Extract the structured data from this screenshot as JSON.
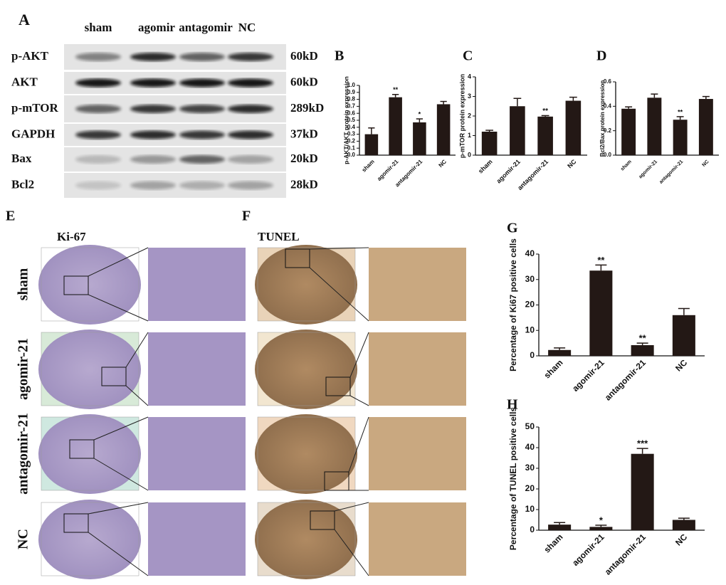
{
  "panel_a": {
    "letter": "A",
    "lanes": [
      "sham",
      "agomir",
      "antagomir",
      "NC"
    ],
    "rows": [
      {
        "protein": "p-AKT",
        "size": "60kD"
      },
      {
        "protein": "AKT",
        "size": "60kD"
      },
      {
        "protein": "p-mTOR",
        "size": "289kD"
      },
      {
        "protein": "GAPDH",
        "size": "37kD"
      },
      {
        "protein": "Bax",
        "size": "20kD"
      },
      {
        "protein": "Bcl2",
        "size": "28kD"
      }
    ]
  },
  "panel_e": {
    "letter": "E",
    "title": "Ki-67"
  },
  "panel_f": {
    "letter": "F",
    "title": "TUNEL"
  },
  "row_labels": [
    "sham",
    "agomir-21",
    "antagomir-21",
    "NC"
  ],
  "chart_data": [
    {
      "type": "bar",
      "panel": "B",
      "y_label": "p-AKT/AKT protein expression",
      "color": "#231815",
      "categories": [
        "sham",
        "agomir-21",
        "antagomir-21",
        "NC"
      ],
      "values": [
        0.3,
        0.83,
        0.47,
        0.73
      ],
      "errors": [
        0.09,
        0.04,
        0.05,
        0.04
      ],
      "annotations": [
        null,
        "**",
        "*",
        null
      ],
      "ylim": [
        0,
        1
      ],
      "yticks": [
        {
          "value": 0,
          "label": "0.0"
        },
        0.1,
        0.2,
        0.3,
        0.4,
        0.5,
        0.6,
        0.7,
        0.8,
        0.9,
        {
          "value": 1,
          "label": "1.0"
        }
      ]
    },
    {
      "type": "bar",
      "panel": "C",
      "y_label": "p-mTOR protein expression",
      "color": "#231815",
      "categories": [
        "sham",
        "agomir-21",
        "antagomir-21",
        "NC"
      ],
      "values": [
        1.2,
        2.5,
        1.97,
        2.78
      ],
      "errors": [
        0.07,
        0.4,
        0.05,
        0.18
      ],
      "annotations": [
        null,
        null,
        "**",
        null
      ],
      "ylim": [
        0,
        4
      ],
      "yticks": [
        0,
        1,
        2,
        3,
        4
      ]
    },
    {
      "type": "bar",
      "panel": "D",
      "y_label": "Bcl2/Bax protein expression",
      "color": "#231815",
      "categories": [
        "sham",
        "agomir-21",
        "antagomir-21",
        "NC"
      ],
      "values": [
        0.38,
        0.47,
        0.29,
        0.46
      ],
      "errors": [
        0.015,
        0.03,
        0.025,
        0.02
      ],
      "annotations": [
        null,
        null,
        "**",
        null
      ],
      "ylim": [
        0,
        0.6
      ],
      "yticks": [
        {
          "value": 0,
          "label": "0.0"
        },
        0.2,
        0.4,
        0.6
      ]
    },
    {
      "type": "bar",
      "panel": "G",
      "y_label": "Percentage of Ki67 positive cells",
      "color": "#231815",
      "categories": [
        "sham",
        "agomir-21",
        "antagomir-21",
        "NC"
      ],
      "values": [
        2.3,
        33.5,
        4.2,
        16
      ],
      "errors": [
        0.8,
        2.2,
        0.8,
        2.6
      ],
      "annotations": [
        null,
        "**",
        "**",
        null
      ],
      "ylim": [
        0,
        40
      ],
      "yticks": [
        0,
        10,
        20,
        30,
        40
      ]
    },
    {
      "type": "bar",
      "panel": "H",
      "y_label": "Percentage of TUNEL positive cells",
      "color": "#231815",
      "categories": [
        "sham",
        "agomir-21",
        "antagomir-21",
        "NC"
      ],
      "values": [
        2.7,
        1.6,
        37,
        5
      ],
      "errors": [
        1,
        0.8,
        2.6,
        0.8
      ],
      "annotations": [
        null,
        "*",
        "***",
        null
      ],
      "ylim": [
        0,
        50
      ],
      "yticks": [
        0,
        10,
        20,
        30,
        40,
        50
      ]
    }
  ]
}
